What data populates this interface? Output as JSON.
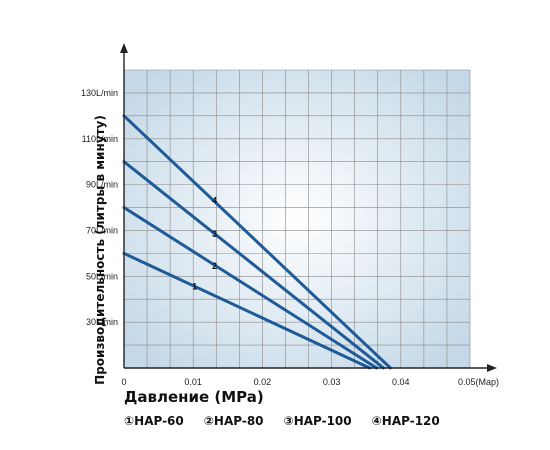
{
  "chart_data": {
    "type": "line",
    "title": "",
    "xlabel": "Давление (MPa)",
    "ylabel": "Производительность (литры в минуту)",
    "xlim": [
      0,
      0.05
    ],
    "ylim": [
      10,
      140
    ],
    "x_ticks": [
      {
        "value": 0,
        "label": "0"
      },
      {
        "value": 0.01,
        "label": "0.01"
      },
      {
        "value": 0.02,
        "label": "0.02"
      },
      {
        "value": 0.03,
        "label": "0.03"
      },
      {
        "value": 0.04,
        "label": "0.04"
      },
      {
        "value": 0.05,
        "label": "0.05(Map)"
      }
    ],
    "y_ticks": [
      {
        "value": 30,
        "label": "30L/min"
      },
      {
        "value": 50,
        "label": "50L/min"
      },
      {
        "value": 70,
        "label": "70L/min"
      },
      {
        "value": 90,
        "label": "90L/min"
      },
      {
        "value": 110,
        "label": "110L/min"
      },
      {
        "value": 130,
        "label": "130L/min"
      }
    ],
    "grid": true,
    "series": [
      {
        "label": "1",
        "points": [
          [
            0,
            60
          ],
          [
            0.0355,
            10
          ]
        ],
        "label_at": [
          0.0102,
          45.5
        ]
      },
      {
        "label": "2",
        "points": [
          [
            0,
            80
          ],
          [
            0.0365,
            10
          ]
        ],
        "label_at": [
          0.0131,
          54.5
        ]
      },
      {
        "label": "3",
        "points": [
          [
            0,
            100
          ],
          [
            0.0375,
            10
          ]
        ],
        "label_at": [
          0.0131,
          68.5
        ]
      },
      {
        "label": "4",
        "points": [
          [
            0,
            120
          ],
          [
            0.0385,
            10
          ]
        ],
        "label_at": [
          0.0131,
          83
        ]
      }
    ],
    "colors": {
      "line": "#1f5a99",
      "plot_background": "#cfe0ec",
      "grid": "#ffffff",
      "axis": "#222222"
    }
  },
  "legend": [
    {
      "label": "①HAP-60"
    },
    {
      "label": "②HAP-80"
    },
    {
      "label": "③HAP-100"
    },
    {
      "label": "④HAP-120"
    }
  ]
}
